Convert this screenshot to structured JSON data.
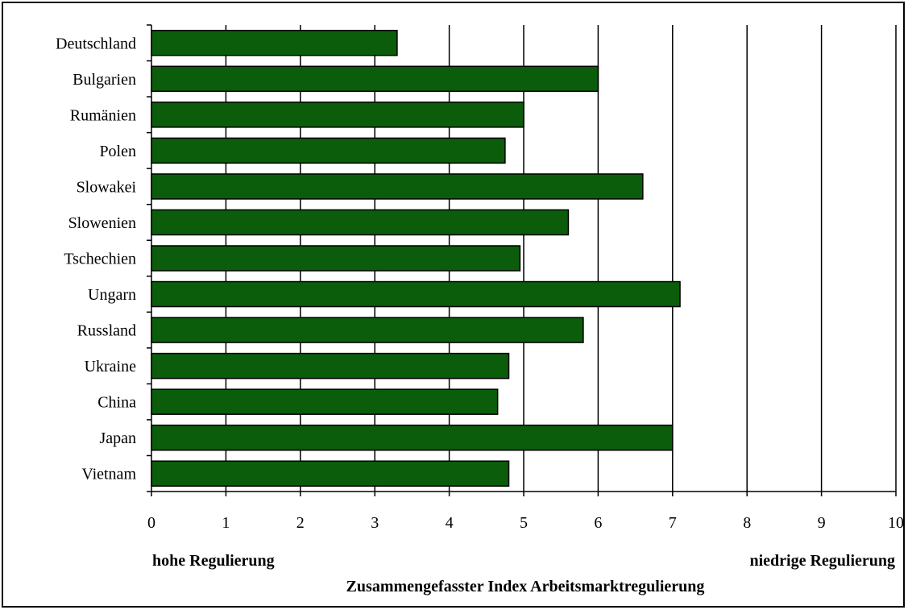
{
  "chart_data": {
    "type": "bar",
    "orientation": "horizontal",
    "categories": [
      "Deutschland",
      "Bulgarien",
      "Rumänien",
      "Polen",
      "Slowakei",
      "Slowenien",
      "Tschechien",
      "Ungarn",
      "Russland",
      "Ukraine",
      "China",
      "Japan",
      "Vietnam"
    ],
    "values": [
      3.3,
      6.0,
      5.0,
      4.75,
      6.6,
      5.6,
      4.95,
      7.1,
      5.8,
      4.8,
      4.65,
      7.0,
      4.8
    ],
    "xlim": [
      0,
      10
    ],
    "x_ticks": [
      "0",
      "1",
      "2",
      "3",
      "4",
      "5",
      "6",
      "7",
      "8",
      "9",
      "10"
    ],
    "xlabel": "Zusammengefasster Index Arbeitsmarktregulierung",
    "low_end_label": "hohe Regulierung",
    "high_end_label": "niedrige Regulierung",
    "grid": "vertical",
    "bar_color": "#0b5c0b"
  }
}
